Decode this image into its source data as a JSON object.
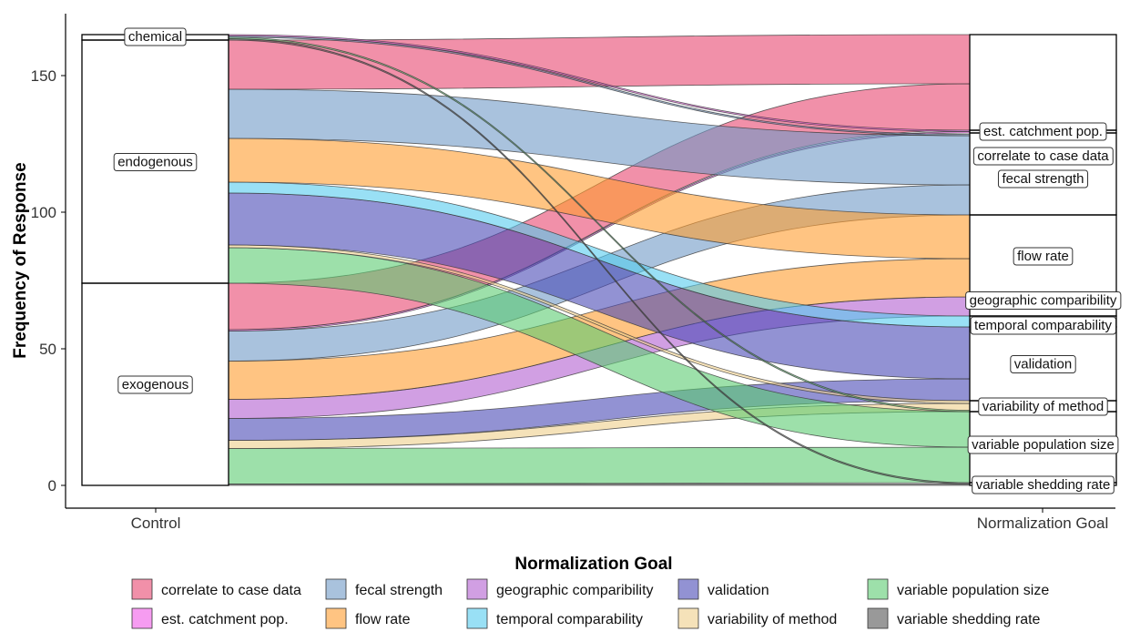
{
  "chart_data": {
    "type": "alluvial",
    "ylabel": "Frequency of Response",
    "ylim": [
      0,
      168
    ],
    "yticks": [
      0,
      50,
      100,
      150
    ],
    "axes": [
      "Control",
      "Normalization Goal"
    ],
    "control_nodes": [
      {
        "label": "exogenous",
        "value": 74
      },
      {
        "label": "endogenous",
        "value": 89
      },
      {
        "label": "chemical",
        "value": 2
      }
    ],
    "goal_nodes": [
      {
        "label": "variable shedding rate",
        "value": 1
      },
      {
        "label": "variable population size",
        "value": 26
      },
      {
        "label": "variability of method",
        "value": 4
      },
      {
        "label": "validation",
        "value": 27
      },
      {
        "label": "temporal comparability",
        "value": 4
      },
      {
        "label": "geographic comparibility",
        "value": 7
      },
      {
        "label": "flow rate",
        "value": 30
      },
      {
        "label": "fecal strength",
        "value": 30
      },
      {
        "label": "est. catchment pop.",
        "value": 1
      },
      {
        "label": "correlate to case data",
        "value": 35
      }
    ],
    "flows": [
      {
        "from": "exogenous",
        "to": "variable population size",
        "value": 13
      },
      {
        "from": "exogenous",
        "to": "variability of method",
        "value": 3
      },
      {
        "from": "exogenous",
        "to": "validation",
        "value": 8
      },
      {
        "from": "exogenous",
        "to": "geographic comparibility",
        "value": 7
      },
      {
        "from": "exogenous",
        "to": "flow rate",
        "value": 14
      },
      {
        "from": "exogenous",
        "to": "fecal strength",
        "value": 11
      },
      {
        "from": "exogenous",
        "to": "est. catchment pop.",
        "value": 0.5
      },
      {
        "from": "exogenous",
        "to": "correlate to case data",
        "value": 17
      },
      {
        "from": "exogenous",
        "to": "variable shedding rate",
        "value": 0.5
      },
      {
        "from": "endogenous",
        "to": "variable population size",
        "value": 13
      },
      {
        "from": "endogenous",
        "to": "variability of method",
        "value": 1
      },
      {
        "from": "endogenous",
        "to": "validation",
        "value": 19
      },
      {
        "from": "endogenous",
        "to": "temporal comparability",
        "value": 4
      },
      {
        "from": "endogenous",
        "to": "flow rate",
        "value": 16
      },
      {
        "from": "endogenous",
        "to": "fecal strength",
        "value": 18
      },
      {
        "from": "endogenous",
        "to": "correlate to case data",
        "value": 18
      },
      {
        "from": "chemical",
        "to": "variable shedding rate",
        "value": 0.5
      },
      {
        "from": "chemical",
        "to": "variable population size",
        "value": 0.5
      },
      {
        "from": "chemical",
        "to": "fecal strength",
        "value": 0.5
      },
      {
        "from": "chemical",
        "to": "est. catchment pop.",
        "value": 0.5
      }
    ]
  },
  "legend": {
    "title": "Normalization Goal",
    "items": [
      {
        "label": "correlate to case data",
        "color": "#e8466f"
      },
      {
        "label": "est. catchment pop.",
        "color": "#f05ae8"
      },
      {
        "label": "fecal strength",
        "color": "#6f9ac7"
      },
      {
        "label": "flow rate",
        "color": "#ff9d2e"
      },
      {
        "label": "geographic comparibility",
        "color": "#b35fd0"
      },
      {
        "label": "temporal comparability",
        "color": "#55ccee"
      },
      {
        "label": "validation",
        "color": "#4a4ab5"
      },
      {
        "label": "variability of method",
        "color": "#efcf8a"
      },
      {
        "label": "variable population size",
        "color": "#5ccb72"
      },
      {
        "label": "variable shedding rate",
        "color": "#555555"
      }
    ]
  }
}
